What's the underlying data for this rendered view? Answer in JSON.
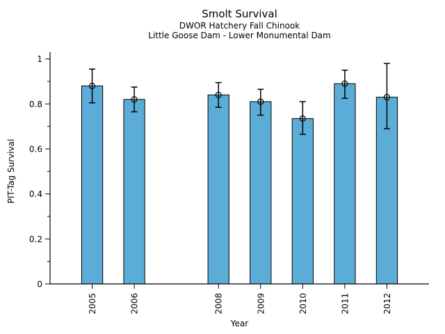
{
  "chart_data": {
    "type": "bar",
    "title": "Smolt Survival",
    "subtitle1": "DWOR Hatchery Fall Chinook",
    "subtitle2": "Little Goose Dam - Lower Monumental Dam",
    "xlabel": "Year",
    "ylabel": "PIT-Tag Survival",
    "categories": [
      2005,
      2006,
      2008,
      2009,
      2010,
      2011,
      2012
    ],
    "values": [
      0.88,
      0.82,
      0.84,
      0.81,
      0.735,
      0.89,
      0.83
    ],
    "error_low": [
      0.805,
      0.765,
      0.785,
      0.75,
      0.665,
      0.825,
      0.69
    ],
    "error_high": [
      0.955,
      0.875,
      0.895,
      0.865,
      0.81,
      0.95,
      0.98
    ],
    "xlim": [
      2004,
      2013
    ],
    "ylim": [
      0,
      1.03
    ],
    "yticks": [
      0,
      0.2,
      0.4,
      0.6,
      0.8,
      1
    ],
    "ytick_labels": [
      "0",
      "0.2",
      "0.4",
      "0.6",
      "0.8",
      "1"
    ],
    "yminor_ticks": [
      0.1,
      0.3,
      0.5,
      0.7,
      0.9
    ],
    "bar_width_years": 0.5,
    "bar_color": "#5BACD6",
    "bar_edge_color": "#000000",
    "error_bar_color": "#000000",
    "marker": "open-circle",
    "grid": false,
    "legend": null,
    "spines": [
      "left",
      "bottom"
    ]
  }
}
